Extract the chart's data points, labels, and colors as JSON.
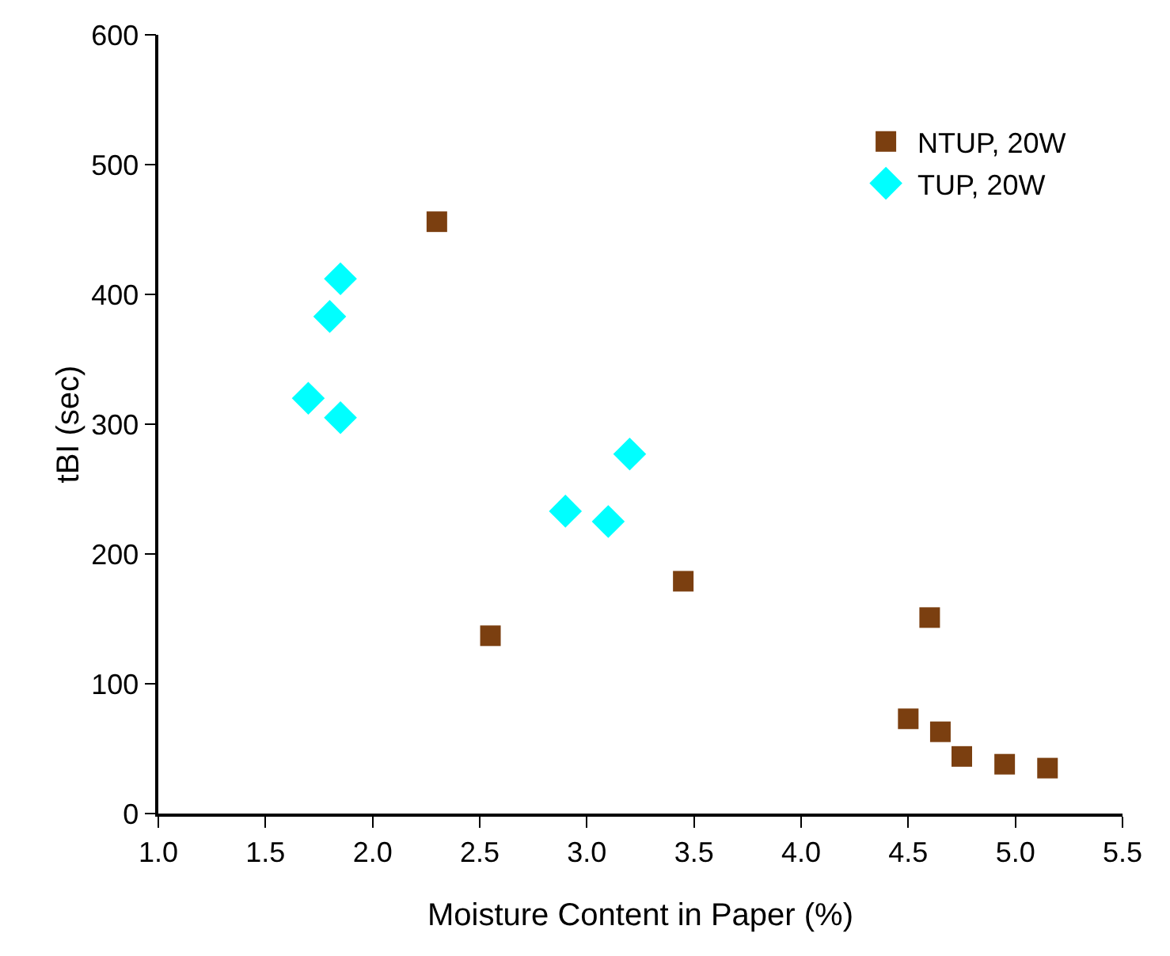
{
  "chart_data": {
    "type": "scatter",
    "xlabel": "Moisture Content in Paper (%)",
    "ylabel": "tBI (sec)",
    "xlim": [
      1.0,
      5.5
    ],
    "xticks": [
      {
        "value": 1,
        "label": "1.0"
      },
      {
        "value": 1.5,
        "label": "1.5"
      },
      {
        "value": 2,
        "label": "2.0"
      },
      {
        "value": 2.5,
        "label": "2.5"
      },
      {
        "value": 3,
        "label": "3.0"
      },
      {
        "value": 3.5,
        "label": "3.5"
      },
      {
        "value": 4,
        "label": "4.0"
      },
      {
        "value": 4.5,
        "label": "4.5"
      },
      {
        "value": 5,
        "label": "5.0"
      },
      {
        "value": 5.5,
        "label": "5.5"
      }
    ],
    "ylim": [
      0,
      600
    ],
    "yticks": [
      0,
      100,
      200,
      300,
      400,
      500,
      600
    ],
    "grid": false,
    "legend": "top right",
    "series": [
      {
        "name": "NTUP, 20W",
        "color": "#7b3f10",
        "marker": "square",
        "x": [
          2.3,
          2.55,
          3.45,
          4.5,
          4.6,
          4.65,
          4.75,
          4.95,
          5.15
        ],
        "values": [
          456,
          137,
          179,
          73,
          151,
          63,
          44,
          38,
          35
        ]
      },
      {
        "name": "TUP, 20W",
        "color": "#00ffff",
        "marker": "diamond",
        "x": [
          1.7,
          1.8,
          1.85,
          1.85,
          2.9,
          3.1,
          3.2
        ],
        "values": [
          320,
          383,
          412,
          305,
          233,
          225,
          277
        ]
      }
    ]
  }
}
